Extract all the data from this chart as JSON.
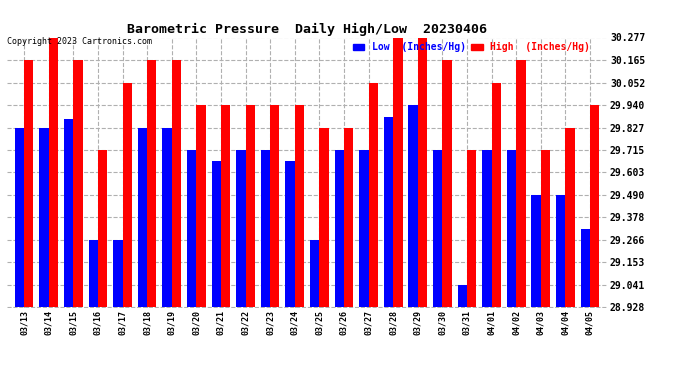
{
  "title": "Barometric Pressure  Daily High/Low  20230406",
  "copyright": "Copyright 2023 Cartronics.com",
  "legend_low": "Low  (Inches/Hg)",
  "legend_high": "High  (Inches/Hg)",
  "dates": [
    "03/13",
    "03/14",
    "03/15",
    "03/16",
    "03/17",
    "03/18",
    "03/19",
    "03/20",
    "03/21",
    "03/22",
    "03/23",
    "03/24",
    "03/25",
    "03/26",
    "03/27",
    "03/28",
    "03/29",
    "03/30",
    "03/31",
    "04/01",
    "04/02",
    "04/03",
    "04/04",
    "04/05"
  ],
  "low_values": [
    29.827,
    29.827,
    29.87,
    29.266,
    29.266,
    29.827,
    29.827,
    29.715,
    29.66,
    29.715,
    29.715,
    29.66,
    29.266,
    29.715,
    29.715,
    29.88,
    29.94,
    29.715,
    29.041,
    29.715,
    29.715,
    29.49,
    29.49,
    29.32
  ],
  "high_values": [
    30.165,
    30.277,
    30.165,
    29.715,
    30.052,
    30.165,
    30.165,
    29.94,
    29.94,
    29.94,
    29.94,
    29.94,
    29.827,
    29.827,
    30.052,
    30.277,
    30.277,
    30.165,
    29.715,
    30.052,
    30.165,
    29.715,
    29.827,
    29.94
  ],
  "ylim_min": 28.928,
  "ylim_max": 30.277,
  "yticks": [
    28.928,
    29.041,
    29.153,
    29.266,
    29.378,
    29.49,
    29.603,
    29.715,
    29.827,
    29.94,
    30.052,
    30.165,
    30.277
  ],
  "bar_width": 0.38,
  "low_color": "#0000ff",
  "high_color": "#ff0000",
  "bg_color": "#ffffff",
  "grid_color": "#b0b0b0",
  "title_color": "#000000",
  "copyright_color": "#000000",
  "legend_low_color": "#0000ff",
  "legend_high_color": "#ff0000"
}
